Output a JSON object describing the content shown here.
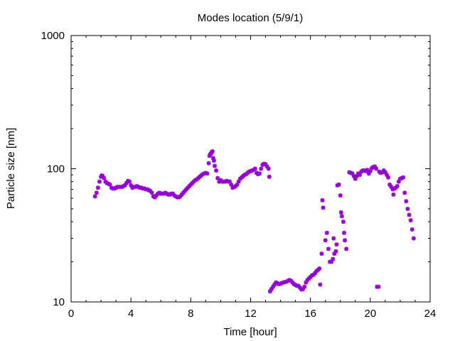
{
  "chart_data": {
    "type": "scatter",
    "title": "Modes location (5/9/1)",
    "xlabel": "Time [hour]",
    "ylabel": "Particle size [nm]",
    "xlim": [
      0,
      24
    ],
    "ylim": [
      10,
      1000
    ],
    "yscale": "log",
    "x_ticks": [
      0,
      4,
      8,
      12,
      16,
      20,
      24
    ],
    "x_tick_labels": [
      "0",
      "4",
      "8",
      "12",
      "16",
      "20",
      "24"
    ],
    "y_ticks": [
      10,
      100,
      1000
    ],
    "y_tick_labels": [
      "10",
      "100",
      "1000"
    ],
    "grid": false,
    "marker_color": "#9400d3",
    "series": [
      {
        "points": [
          [
            1.6,
            62
          ],
          [
            1.7,
            66
          ],
          [
            1.8,
            72
          ],
          [
            1.9,
            80
          ],
          [
            2.0,
            87
          ],
          [
            2.05,
            89
          ],
          [
            2.1,
            88
          ],
          [
            2.2,
            85
          ],
          [
            2.3,
            80
          ],
          [
            2.4,
            78
          ],
          [
            2.5,
            77
          ],
          [
            2.6,
            76
          ],
          [
            2.7,
            72
          ],
          [
            2.8,
            71
          ],
          [
            2.9,
            71
          ],
          [
            3.0,
            72
          ],
          [
            3.1,
            73
          ],
          [
            3.2,
            73
          ],
          [
            3.3,
            73
          ],
          [
            3.4,
            73
          ],
          [
            3.5,
            74
          ],
          [
            3.6,
            75
          ],
          [
            3.7,
            78
          ],
          [
            3.8,
            81
          ],
          [
            3.9,
            80
          ],
          [
            4.0,
            75
          ],
          [
            4.1,
            72
          ],
          [
            4.2,
            73
          ],
          [
            4.3,
            73
          ],
          [
            4.4,
            74
          ],
          [
            4.5,
            73
          ],
          [
            4.6,
            72
          ],
          [
            4.7,
            72
          ],
          [
            4.8,
            71
          ],
          [
            4.9,
            71
          ],
          [
            5.0,
            70
          ],
          [
            5.1,
            70
          ],
          [
            5.2,
            69
          ],
          [
            5.3,
            68
          ],
          [
            5.4,
            66
          ],
          [
            5.5,
            62
          ],
          [
            5.6,
            61
          ],
          [
            5.7,
            63
          ],
          [
            5.8,
            65
          ],
          [
            5.9,
            66
          ],
          [
            6.0,
            65
          ],
          [
            6.1,
            65
          ],
          [
            6.2,
            65
          ],
          [
            6.3,
            66
          ],
          [
            6.4,
            65
          ],
          [
            6.5,
            64
          ],
          [
            6.6,
            64
          ],
          [
            6.7,
            65
          ],
          [
            6.8,
            65
          ],
          [
            6.9,
            63
          ],
          [
            7.0,
            62
          ],
          [
            7.1,
            61
          ],
          [
            7.2,
            61
          ],
          [
            7.3,
            62
          ],
          [
            7.4,
            64
          ],
          [
            7.5,
            66
          ],
          [
            7.6,
            68
          ],
          [
            7.7,
            70
          ],
          [
            7.8,
            72
          ],
          [
            7.9,
            74
          ],
          [
            8.0,
            76
          ],
          [
            8.1,
            78
          ],
          [
            8.2,
            80
          ],
          [
            8.3,
            82
          ],
          [
            8.4,
            83
          ],
          [
            8.5,
            85
          ],
          [
            8.6,
            87
          ],
          [
            8.7,
            89
          ],
          [
            8.8,
            91
          ],
          [
            8.9,
            92
          ],
          [
            9.0,
            93
          ],
          [
            9.1,
            92
          ],
          [
            9.2,
            110
          ],
          [
            9.25,
            125
          ],
          [
            9.3,
            128
          ],
          [
            9.35,
            130
          ],
          [
            9.4,
            133
          ],
          [
            9.45,
            135
          ],
          [
            9.5,
            120
          ],
          [
            9.55,
            115
          ],
          [
            9.6,
            105
          ],
          [
            9.7,
            97
          ],
          [
            9.8,
            85
          ],
          [
            9.9,
            80
          ],
          [
            10.0,
            82
          ],
          [
            10.1,
            80
          ],
          [
            10.2,
            80
          ],
          [
            10.3,
            80
          ],
          [
            10.4,
            81
          ],
          [
            10.5,
            80
          ],
          [
            10.6,
            80
          ],
          [
            10.7,
            76
          ],
          [
            10.8,
            72
          ],
          [
            10.9,
            73
          ],
          [
            11.0,
            74
          ],
          [
            11.1,
            76
          ],
          [
            11.2,
            80
          ],
          [
            11.3,
            84
          ],
          [
            11.4,
            86
          ],
          [
            11.5,
            88
          ],
          [
            11.6,
            90
          ],
          [
            11.7,
            91
          ],
          [
            11.8,
            93
          ],
          [
            11.9,
            95
          ],
          [
            12.0,
            96
          ],
          [
            12.1,
            97
          ],
          [
            12.2,
            98
          ],
          [
            12.3,
            100
          ],
          [
            12.4,
            93
          ],
          [
            12.5,
            91
          ],
          [
            12.6,
            92
          ],
          [
            12.7,
            100
          ],
          [
            12.8,
            107
          ],
          [
            12.9,
            109
          ],
          [
            13.0,
            108
          ],
          [
            13.1,
            104
          ],
          [
            13.2,
            100
          ],
          [
            13.25,
            87
          ],
          [
            13.3,
            12
          ],
          [
            13.4,
            12.5
          ],
          [
            13.5,
            13
          ],
          [
            13.6,
            13.5
          ],
          [
            13.7,
            14
          ],
          [
            13.8,
            13.8
          ],
          [
            13.9,
            13.6
          ],
          [
            14.0,
            13.7
          ],
          [
            14.1,
            13.9
          ],
          [
            14.2,
            14
          ],
          [
            14.3,
            14.1
          ],
          [
            14.4,
            14.2
          ],
          [
            14.5,
            14.4
          ],
          [
            14.6,
            14.6
          ],
          [
            14.7,
            14.4
          ],
          [
            14.8,
            14
          ],
          [
            14.9,
            13.6
          ],
          [
            15.0,
            13.4
          ],
          [
            15.1,
            13.2
          ],
          [
            15.2,
            13.2
          ],
          [
            15.3,
            12.8
          ],
          [
            15.4,
            12.4
          ],
          [
            15.5,
            12.5
          ],
          [
            15.6,
            13
          ],
          [
            15.7,
            14
          ],
          [
            15.8,
            14.6
          ],
          [
            15.9,
            15
          ],
          [
            16.0,
            15.4
          ],
          [
            16.1,
            15.8
          ],
          [
            16.2,
            16
          ],
          [
            16.3,
            16.4
          ],
          [
            16.4,
            17
          ],
          [
            16.5,
            17.4
          ],
          [
            16.6,
            17.8
          ],
          [
            16.65,
            13.5
          ],
          [
            16.75,
            23
          ],
          [
            16.8,
            58
          ],
          [
            16.85,
            51
          ],
          [
            17.0,
            29
          ],
          [
            17.1,
            33
          ],
          [
            17.2,
            25
          ],
          [
            17.3,
            20
          ],
          [
            17.4,
            20
          ],
          [
            17.5,
            21
          ],
          [
            17.55,
            30
          ],
          [
            17.6,
            23
          ],
          [
            17.7,
            24
          ],
          [
            17.75,
            27
          ],
          [
            17.8,
            75
          ],
          [
            17.9,
            76
          ],
          [
            18.0,
            63
          ],
          [
            18.05,
            47
          ],
          [
            18.1,
            44
          ],
          [
            18.2,
            40
          ],
          [
            18.25,
            33
          ],
          [
            18.3,
            29
          ],
          [
            18.4,
            25
          ],
          [
            18.6,
            94
          ],
          [
            18.7,
            93
          ],
          [
            18.8,
            92
          ],
          [
            18.9,
            88
          ],
          [
            19.0,
            84
          ],
          [
            19.1,
            88
          ],
          [
            19.2,
            92
          ],
          [
            19.3,
            90
          ],
          [
            19.4,
            95
          ],
          [
            19.5,
            97
          ],
          [
            19.6,
            97
          ],
          [
            19.7,
            96
          ],
          [
            19.8,
            98
          ],
          [
            19.9,
            92
          ],
          [
            20.0,
            96
          ],
          [
            20.1,
            101
          ],
          [
            20.2,
            103
          ],
          [
            20.3,
            104
          ],
          [
            20.4,
            100
          ],
          [
            20.45,
            13
          ],
          [
            20.55,
            13
          ],
          [
            20.6,
            95
          ],
          [
            20.7,
            93
          ],
          [
            20.8,
            94
          ],
          [
            20.9,
            97
          ],
          [
            21.0,
            94
          ],
          [
            21.1,
            90
          ],
          [
            21.2,
            86
          ],
          [
            21.3,
            76
          ],
          [
            21.4,
            73
          ],
          [
            21.5,
            70
          ],
          [
            21.55,
            64
          ],
          [
            21.6,
            71
          ],
          [
            21.7,
            72
          ],
          [
            21.8,
            74
          ],
          [
            21.9,
            80
          ],
          [
            22.0,
            84
          ],
          [
            22.1,
            85
          ],
          [
            22.2,
            86
          ],
          [
            22.3,
            66
          ],
          [
            22.4,
            57
          ],
          [
            22.5,
            50
          ],
          [
            22.6,
            45
          ],
          [
            22.7,
            41
          ],
          [
            22.8,
            35
          ],
          [
            22.9,
            30
          ]
        ]
      }
    ]
  }
}
